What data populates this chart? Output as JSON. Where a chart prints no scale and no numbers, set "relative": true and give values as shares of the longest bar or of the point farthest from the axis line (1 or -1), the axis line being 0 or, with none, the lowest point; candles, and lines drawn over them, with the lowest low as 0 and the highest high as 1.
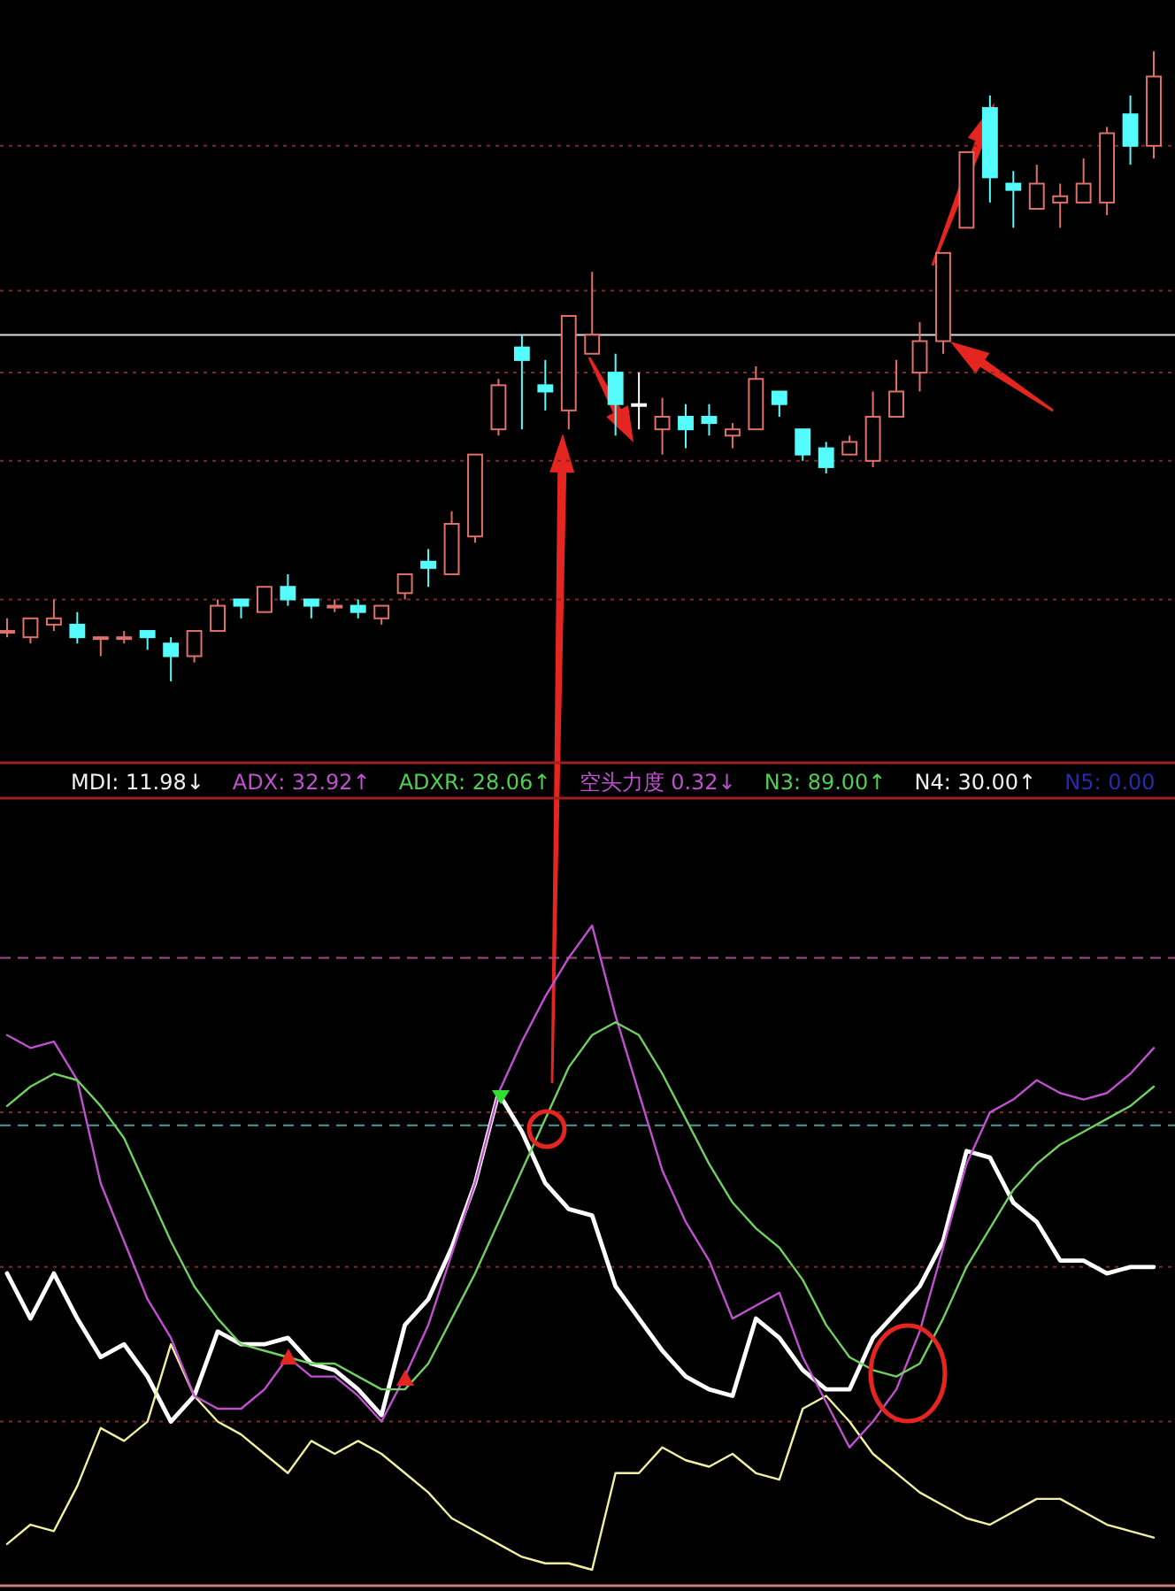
{
  "chart_data": [
    {
      "type": "candlestick",
      "relative": true,
      "categories": [
        null,
        null,
        null,
        null,
        null,
        null,
        null,
        null,
        null,
        null,
        null,
        null,
        null,
        null,
        null,
        null,
        null,
        null,
        null,
        null,
        null,
        null,
        null,
        null,
        null,
        null,
        null,
        null,
        null,
        null,
        null,
        null,
        null,
        null,
        null,
        null,
        null,
        null,
        null,
        null,
        null,
        null,
        null,
        null,
        null,
        null,
        null,
        null,
        null,
        null
      ],
      "ohlc": [
        [
          0.08,
          0.1,
          0.07,
          0.08
        ],
        [
          0.07,
          0.1,
          0.06,
          0.1
        ],
        [
          0.09,
          0.13,
          0.08,
          0.1
        ],
        [
          0.09,
          0.11,
          0.06,
          0.07
        ],
        [
          0.07,
          0.07,
          0.04,
          0.07
        ],
        [
          0.07,
          0.08,
          0.06,
          0.07
        ],
        [
          0.08,
          0.08,
          0.05,
          0.07
        ],
        [
          0.06,
          0.07,
          0,
          0.04
        ],
        [
          0.04,
          0.08,
          0.03,
          0.08
        ],
        [
          0.08,
          0.13,
          0.08,
          0.12
        ],
        [
          0.13,
          0.13,
          0.1,
          0.12
        ],
        [
          0.11,
          0.15,
          0.11,
          0.15
        ],
        [
          0.15,
          0.17,
          0.12,
          0.13
        ],
        [
          0.13,
          0.13,
          0.1,
          0.12
        ],
        [
          0.12,
          0.13,
          0.11,
          0.12
        ],
        [
          0.12,
          0.13,
          0.1,
          0.11
        ],
        [
          0.1,
          0.12,
          0.09,
          0.12
        ],
        [
          0.14,
          0.17,
          0.13,
          0.17
        ],
        [
          0.19,
          0.21,
          0.15,
          0.18
        ],
        [
          0.17,
          0.27,
          0.17,
          0.25
        ],
        [
          0.23,
          0.36,
          0.22,
          0.36
        ],
        [
          0.4,
          0.48,
          0.39,
          0.47
        ],
        [
          0.53,
          0.55,
          0.4,
          0.51
        ],
        [
          0.47,
          0.51,
          0.43,
          0.46
        ],
        [
          0.43,
          0.58,
          0.4,
          0.58
        ],
        [
          0.52,
          0.65,
          0.52,
          0.55
        ],
        [
          0.49,
          0.52,
          0.39,
          0.44
        ],
        [
          0.44,
          0.49,
          0.4,
          0.44
        ],
        [
          0.4,
          0.45,
          0.36,
          0.42
        ],
        [
          0.42,
          0.44,
          0.37,
          0.4
        ],
        [
          0.42,
          0.44,
          0.39,
          0.41
        ],
        [
          0.39,
          0.41,
          0.37,
          0.4
        ],
        [
          0.4,
          0.5,
          0.4,
          0.48
        ],
        [
          0.46,
          0.46,
          0.42,
          0.44
        ],
        [
          0.4,
          0.4,
          0.35,
          0.36
        ],
        [
          0.37,
          0.38,
          0.33,
          0.34
        ],
        [
          0.36,
          0.39,
          0.36,
          0.38
        ],
        [
          0.35,
          0.46,
          0.34,
          0.42
        ],
        [
          0.42,
          0.51,
          0.42,
          0.46
        ],
        [
          0.49,
          0.57,
          0.46,
          0.54
        ],
        [
          0.54,
          0.68,
          0.52,
          0.68
        ],
        [
          0.72,
          0.84,
          0.72,
          0.84
        ],
        [
          0.91,
          0.93,
          0.76,
          0.8
        ],
        [
          0.79,
          0.81,
          0.72,
          0.78
        ],
        [
          0.75,
          0.82,
          0.75,
          0.79
        ],
        [
          0.76,
          0.79,
          0.72,
          0.77
        ],
        [
          0.76,
          0.83,
          0.76,
          0.79
        ],
        [
          0.76,
          0.88,
          0.74,
          0.87
        ],
        [
          0.9,
          0.93,
          0.82,
          0.85
        ],
        [
          0.85,
          1,
          0.83,
          0.96
        ]
      ],
      "colors": [
        "#e0706a",
        "#e0706a",
        "#e0706a",
        "#54fcfc",
        "#e0706a",
        "#e0706a",
        "#54fcfc",
        "#54fcfc",
        "#e0706a",
        "#e0706a",
        "#54fcfc",
        "#e0706a",
        "#54fcfc",
        "#54fcfc",
        "#e0706a",
        "#54fcfc",
        "#e0706a",
        "#e0706a",
        "#54fcfc",
        "#e0706a",
        "#e0706a",
        "#e0706a",
        "#54fcfc",
        "#54fcfc",
        "#e0706a",
        "#e0706a",
        "#54fcfc",
        "#ffffff",
        "#e0706a",
        "#54fcfc",
        "#54fcfc",
        "#e0706a",
        "#e0706a",
        "#54fcfc",
        "#54fcfc",
        "#54fcfc",
        "#e0706a",
        "#e0706a",
        "#e0706a",
        "#e0706a",
        "#e0706a",
        "#e0706a",
        "#54fcfc",
        "#54fcfc",
        "#e0706a",
        "#e0706a",
        "#e0706a",
        "#e0706a",
        "#54fcfc",
        "#e0706a"
      ],
      "ref_lines": [
        {
          "axis": "y",
          "value": 0.85,
          "color": "#7a2a2a",
          "line_style": "dotted"
        },
        {
          "axis": "y",
          "value": 0.62,
          "color": "#7a2a2a",
          "line_style": "dotted"
        },
        {
          "axis": "y",
          "value": 0.49,
          "color": "#7a2a2a",
          "line_style": "dotted"
        },
        {
          "axis": "y",
          "value": 0.35,
          "color": "#7a2a2a",
          "line_style": "dotted"
        },
        {
          "axis": "y",
          "value": 0.13,
          "color": "#7a2a2a",
          "line_style": "dotted"
        },
        {
          "axis": "y",
          "value": 0.55,
          "color": "#dddddd",
          "line_style": "solid"
        }
      ]
    },
    {
      "type": "line",
      "relative": true,
      "categories": [
        null,
        null,
        null,
        null,
        null,
        null,
        null,
        null,
        null,
        null,
        null,
        null,
        null,
        null,
        null,
        null,
        null,
        null,
        null,
        null,
        null,
        null,
        null,
        null,
        null,
        null,
        null,
        null,
        null,
        null,
        null,
        null,
        null,
        null,
        null,
        null,
        null,
        null,
        null,
        null,
        null,
        null,
        null,
        null,
        null,
        null,
        null,
        null,
        null,
        null
      ],
      "series": [
        {
          "color": "#ffffff",
          "values": [
            0.46,
            0.39,
            0.46,
            0.39,
            0.33,
            0.35,
            0.3,
            0.23,
            0.27,
            0.37,
            0.35,
            0.35,
            0.36,
            0.32,
            0.31,
            0.28,
            0.24,
            0.38,
            0.42,
            0.5,
            0.6,
            0.74,
            0.68,
            0.6,
            0.56,
            0.55,
            0.44,
            0.39,
            0.34,
            0.3,
            0.28,
            0.27,
            0.39,
            0.36,
            0.31,
            0.28,
            0.28,
            0.36,
            0.4,
            0.44,
            0.51,
            0.65,
            0.64,
            0.57,
            0.54,
            0.48,
            0.48,
            0.46,
            0.47,
            0.47
          ]
        },
        {
          "color": "#f0f0a0",
          "values": [
            0.04,
            0.07,
            0.06,
            0.13,
            0.22,
            0.2,
            0.23,
            0.35,
            0.27,
            0.23,
            0.21,
            0.18,
            0.15,
            0.2,
            0.18,
            0.2,
            0.18,
            0.15,
            0.12,
            0.08,
            0.06,
            0.04,
            0.02,
            0.01,
            0.01,
            0,
            0.15,
            0.15,
            0.19,
            0.17,
            0.16,
            0.18,
            0.15,
            0.14,
            0.25,
            0.27,
            0.23,
            0.18,
            0.15,
            0.12,
            0.1,
            0.08,
            0.07,
            0.09,
            0.11,
            0.11,
            0.09,
            0.07,
            0.06,
            0.05
          ]
        },
        {
          "color": "#c050d0",
          "values": [
            0.83,
            0.81,
            0.82,
            0.76,
            0.6,
            0.51,
            0.42,
            0.36,
            0.27,
            0.25,
            0.25,
            0.28,
            0.33,
            0.3,
            0.3,
            0.27,
            0.23,
            0.3,
            0.38,
            0.49,
            0.6,
            0.74,
            0.82,
            0.89,
            0.95,
            1,
            0.86,
            0.74,
            0.62,
            0.54,
            0.48,
            0.39,
            0.41,
            0.43,
            0.33,
            0.26,
            0.19,
            0.23,
            0.28,
            0.37,
            0.5,
            0.63,
            0.71,
            0.73,
            0.76,
            0.74,
            0.73,
            0.74,
            0.77,
            0.81
          ]
        },
        {
          "color": "#70d060",
          "values": [
            0.72,
            0.75,
            0.77,
            0.76,
            0.72,
            0.67,
            0.59,
            0.51,
            0.44,
            0.39,
            0.35,
            0.34,
            0.33,
            0.32,
            0.32,
            0.3,
            0.28,
            0.28,
            0.32,
            0.39,
            0.46,
            0.54,
            0.62,
            0.7,
            0.78,
            0.83,
            0.85,
            0.83,
            0.77,
            0.7,
            0.63,
            0.57,
            0.53,
            0.5,
            0.45,
            0.38,
            0.33,
            0.31,
            0.3,
            0.32,
            0.39,
            0.47,
            0.53,
            0.59,
            0.63,
            0.66,
            0.68,
            0.7,
            0.72,
            0.75
          ]
        }
      ],
      "annotations": [
        "MDI: 11.98↓",
        "ADX: 32.92↑",
        "ADXR: 28.06↑",
        "空头力度 0.32↓",
        "N3: 89.00↑",
        "N4: 30.00↑",
        "N5: 0.00"
      ],
      "ref_lines": [
        {
          "axis": "y",
          "value": 0.95,
          "color": "#a04a8a",
          "line_style": "dashed"
        },
        {
          "axis": "y",
          "value": 0.71,
          "color": "#7a2a2a",
          "line_style": "dotted"
        },
        {
          "axis": "y",
          "value": 0.69,
          "color": "#4a9a9a",
          "line_style": "dashed"
        },
        {
          "axis": "y",
          "value": 0.47,
          "color": "#7a2a2a",
          "line_style": "dotted"
        },
        {
          "axis": "y",
          "value": 0.23,
          "color": "#7a2a2a",
          "line_style": "dotted"
        }
      ]
    }
  ]
}
